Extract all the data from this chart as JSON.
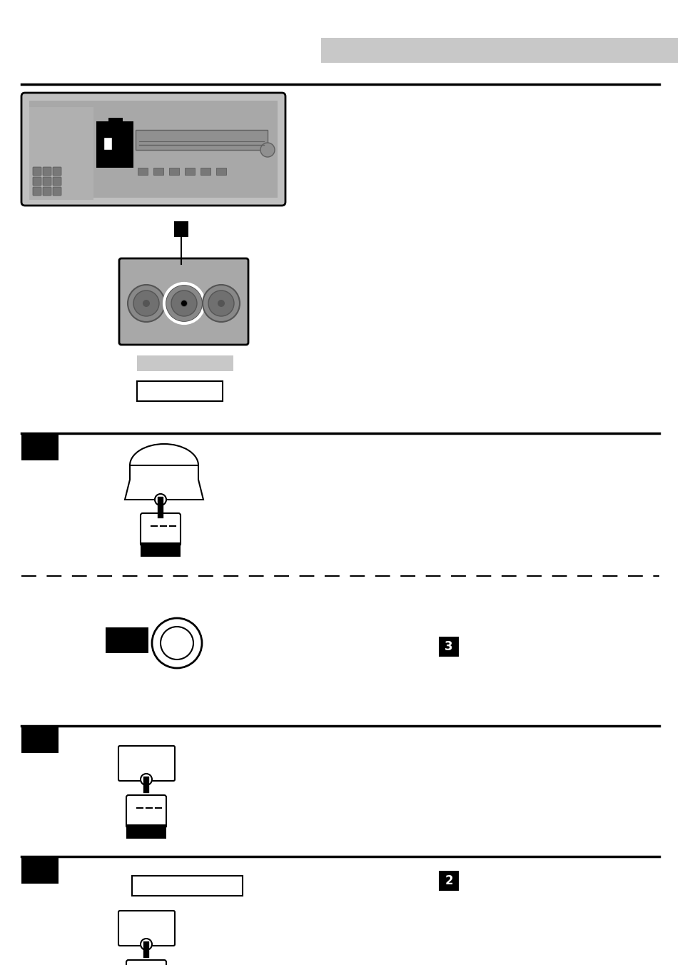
{
  "bg_color": "#ffffff",
  "header_bar_color": "#c8c8c8",
  "line_color": "#000000",
  "gray_detail": "#b0b0b0",
  "dark_gray": "#888888",
  "mid_gray": "#a0a0a0"
}
